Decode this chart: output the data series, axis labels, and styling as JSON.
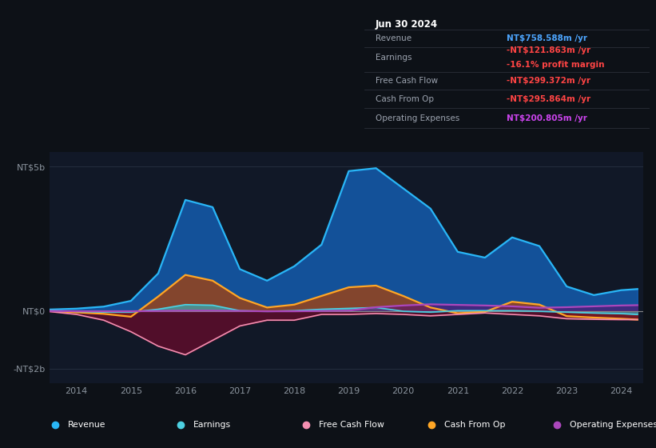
{
  "bg_color": "#0d1117",
  "plot_bg_color": "#111827",
  "grid_color": "#2d3748",
  "years": [
    2013.5,
    2014.0,
    2014.5,
    2015.0,
    2015.5,
    2016.0,
    2016.5,
    2017.0,
    2017.5,
    2018.0,
    2018.5,
    2019.0,
    2019.5,
    2020.0,
    2020.5,
    2021.0,
    2021.5,
    2022.0,
    2022.5,
    2023.0,
    2023.5,
    2024.0,
    2024.3
  ],
  "revenue": [
    0.05,
    0.08,
    0.15,
    0.35,
    1.3,
    3.85,
    3.6,
    1.45,
    1.05,
    1.55,
    2.3,
    4.85,
    4.95,
    4.25,
    3.55,
    2.05,
    1.85,
    2.55,
    2.25,
    0.85,
    0.55,
    0.72,
    0.76
  ],
  "earnings": [
    0.02,
    -0.02,
    -0.04,
    -0.04,
    0.06,
    0.22,
    0.2,
    0.01,
    -0.01,
    0.01,
    0.06,
    0.09,
    0.12,
    -0.01,
    -0.04,
    0.01,
    0.01,
    0.01,
    -0.01,
    -0.04,
    -0.07,
    -0.09,
    -0.12
  ],
  "free_cash_flow": [
    -0.02,
    -0.12,
    -0.32,
    -0.72,
    -1.22,
    -1.52,
    -1.02,
    -0.52,
    -0.32,
    -0.32,
    -0.12,
    -0.12,
    -0.09,
    -0.12,
    -0.17,
    -0.12,
    -0.07,
    -0.12,
    -0.17,
    -0.27,
    -0.29,
    -0.3,
    -0.3
  ],
  "cash_from_op": [
    0.0,
    -0.05,
    -0.1,
    -0.2,
    0.5,
    1.25,
    1.05,
    0.45,
    0.12,
    0.22,
    0.52,
    0.82,
    0.88,
    0.52,
    0.12,
    -0.08,
    -0.03,
    0.32,
    0.22,
    -0.18,
    -0.23,
    -0.27,
    -0.3
  ],
  "op_expenses": [
    0.0,
    -0.01,
    -0.01,
    -0.01,
    0.0,
    0.01,
    0.01,
    0.0,
    -0.01,
    -0.01,
    0.0,
    0.01,
    0.13,
    0.19,
    0.23,
    0.21,
    0.19,
    0.16,
    0.11,
    0.13,
    0.16,
    0.19,
    0.2
  ],
  "xtick_years": [
    2014,
    2015,
    2016,
    2017,
    2018,
    2019,
    2020,
    2021,
    2022,
    2023,
    2024
  ],
  "ylim": [
    -2.5,
    5.5
  ],
  "xlim": [
    2013.5,
    2024.4
  ],
  "ytick_vals": [
    -2.0,
    0.0,
    5.0
  ],
  "ytick_labels": [
    "-NT$2b",
    "NT$0",
    "NT$5b"
  ],
  "revenue_line_color": "#29b6f6",
  "earnings_line_color": "#4dd0e1",
  "fcf_line_color": "#f48fb1",
  "cop_line_color": "#ffa726",
  "opex_line_color": "#ab47bc",
  "revenue_fill_color": "#1565c0",
  "earnings_fill_color": "#26c6da",
  "fcf_fill_color": "#6d0a2c",
  "cop_fill_color": "#b34000",
  "opex_fill_color": "#5e1070",
  "legend": [
    {
      "label": "Revenue",
      "color": "#29b6f6"
    },
    {
      "label": "Earnings",
      "color": "#4dd0e1"
    },
    {
      "label": "Free Cash Flow",
      "color": "#f48fb1"
    },
    {
      "label": "Cash From Op",
      "color": "#ffa726"
    },
    {
      "label": "Operating Expenses",
      "color": "#ab47bc"
    }
  ],
  "info_date": "Jun 30 2024",
  "info_rows": [
    {
      "label": "Revenue",
      "value": "NT$758.588m",
      "suffix": " /yr",
      "color": "#4da6ff",
      "extra": null,
      "extra_color": null
    },
    {
      "label": "Earnings",
      "value": "-NT$121.863m",
      "suffix": " /yr",
      "color": "#ff4444",
      "extra": "-16.1% profit margin",
      "extra_color": "#ff4444"
    },
    {
      "label": "Free Cash Flow",
      "value": "-NT$299.372m",
      "suffix": " /yr",
      "color": "#ff4444",
      "extra": null,
      "extra_color": null
    },
    {
      "label": "Cash From Op",
      "value": "-NT$295.864m",
      "suffix": " /yr",
      "color": "#ff4444",
      "extra": null,
      "extra_color": null
    },
    {
      "label": "Operating Expenses",
      "value": "NT$200.805m",
      "suffix": " /yr",
      "color": "#cc44ee",
      "extra": null,
      "extra_color": null
    }
  ]
}
